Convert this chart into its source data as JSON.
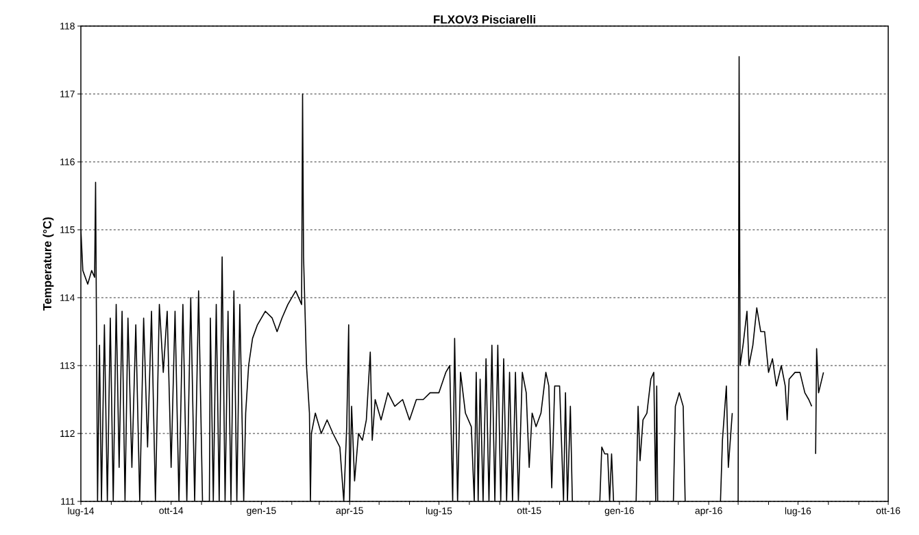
{
  "chart_data": {
    "type": "line",
    "title": "FLXOV3 Pisciarelli",
    "ylabel": "Temperature (°C)",
    "xlim": [
      "2014-07-01",
      "2016-10-01"
    ],
    "xticks": [
      {
        "value": "2014-07-01",
        "label": "lug-14"
      },
      {
        "value": "2014-08-01",
        "label": null
      },
      {
        "value": "2014-09-01",
        "label": null
      },
      {
        "value": "2014-10-01",
        "label": "ott-14"
      },
      {
        "value": "2014-11-01",
        "label": null
      },
      {
        "value": "2014-12-01",
        "label": null
      },
      {
        "value": "2015-01-01",
        "label": "gen-15"
      },
      {
        "value": "2015-02-01",
        "label": null
      },
      {
        "value": "2015-03-01",
        "label": null
      },
      {
        "value": "2015-04-01",
        "label": "apr-15"
      },
      {
        "value": "2015-05-01",
        "label": null
      },
      {
        "value": "2015-06-01",
        "label": null
      },
      {
        "value": "2015-07-01",
        "label": "lug-15"
      },
      {
        "value": "2015-08-01",
        "label": null
      },
      {
        "value": "2015-09-01",
        "label": null
      },
      {
        "value": "2015-10-01",
        "label": "ott-15"
      },
      {
        "value": "2015-11-01",
        "label": null
      },
      {
        "value": "2015-12-01",
        "label": null
      },
      {
        "value": "2016-01-01",
        "label": "gen-16"
      },
      {
        "value": "2016-02-01",
        "label": null
      },
      {
        "value": "2016-03-01",
        "label": null
      },
      {
        "value": "2016-04-01",
        "label": "apr-16"
      },
      {
        "value": "2016-05-01",
        "label": null
      },
      {
        "value": "2016-06-01",
        "label": null
      },
      {
        "value": "2016-07-01",
        "label": "lug-16"
      },
      {
        "value": "2016-08-01",
        "label": null
      },
      {
        "value": "2016-09-01",
        "label": null
      },
      {
        "value": "2016-10-01",
        "label": "ott-16"
      }
    ],
    "ylim": [
      111,
      118
    ],
    "yticks": [
      111,
      112,
      113,
      114,
      115,
      116,
      117,
      118
    ],
    "grid": "y",
    "marker": "none",
    "line_style": "solid",
    "series": [
      {
        "color": "#000000",
        "x": [
          "2014-07-01",
          "2014-07-03",
          "2014-07-08",
          "2014-07-12",
          "2014-07-15",
          "2014-07-16",
          "2014-07-18",
          "2014-07-20",
          "2014-07-22",
          "2014-07-25",
          "2014-07-28",
          "2014-07-31",
          "2014-08-03",
          "2014-08-06",
          "2014-08-09",
          "2014-08-12",
          "2014-08-15",
          "2014-08-18",
          "2014-08-22",
          "2014-08-26",
          "2014-08-30",
          "2014-09-03",
          "2014-09-07",
          "2014-09-11",
          "2014-09-15",
          "2014-09-19",
          "2014-09-23",
          "2014-09-27",
          "2014-10-01",
          "2014-10-05",
          "2014-10-09",
          "2014-10-13",
          "2014-10-17",
          "2014-10-21",
          "2014-10-25",
          "2014-10-29",
          "2014-11-02",
          "2014-11-09",
          "2014-11-10",
          "2014-11-13",
          "2014-11-16",
          "2014-11-19",
          "2014-11-22",
          "2014-11-25",
          "2014-11-28",
          "2014-12-01",
          "2014-12-04",
          "2014-12-07",
          "2014-12-10",
          "2014-12-14",
          "2014-12-16",
          "2014-12-19",
          "2014-12-23",
          "2014-12-28",
          "2015-01-05",
          "2015-01-12",
          "2015-01-17",
          "2015-01-22",
          "2015-01-28",
          "2015-02-05",
          "2015-02-11",
          "2015-02-12",
          "2015-02-13",
          "2015-02-16",
          "2015-02-19",
          "2015-02-20",
          "2015-02-21",
          "2015-02-25",
          "2015-03-03",
          "2015-03-09",
          "2015-03-15",
          "2015-03-22",
          "2015-03-26",
          "2015-03-29",
          "2015-03-31",
          "2015-04-01",
          "2015-04-03",
          "2015-04-06",
          "2015-04-10",
          "2015-04-14",
          "2015-04-18",
          "2015-04-22",
          "2015-04-24",
          "2015-04-27",
          "2015-05-03",
          "2015-05-10",
          "2015-05-17",
          "2015-05-25",
          "2015-06-01",
          "2015-06-08",
          "2015-06-15",
          "2015-06-22",
          "2015-07-01",
          "2015-07-08",
          "2015-07-12",
          "2015-07-15",
          "2015-07-17",
          "2015-07-20",
          "2015-07-23",
          "2015-07-28",
          "2015-08-03",
          "2015-08-06",
          "2015-08-08",
          "2015-08-10",
          "2015-08-12",
          "2015-08-15",
          "2015-08-18",
          "2015-08-21",
          "2015-08-24",
          "2015-08-27",
          "2015-08-30",
          "2015-09-02",
          "2015-09-05",
          "2015-09-08",
          "2015-09-11",
          "2015-09-14",
          "2015-09-17",
          "2015-09-20",
          "2015-09-24",
          "2015-09-28",
          "2015-10-01",
          "2015-10-04",
          "2015-10-08",
          "2015-10-13",
          "2015-10-18",
          "2015-10-21",
          "2015-10-24",
          "2015-10-27",
          "2015-11-01",
          "2015-11-05",
          "2015-11-07",
          "2015-11-09",
          "2015-11-12",
          "2015-11-14",
          "2015-11-20",
          "2015-12-12",
          "2015-12-14",
          "2015-12-17",
          "2015-12-20",
          "2015-12-22",
          "2015-12-24",
          "2015-12-26",
          "2015-12-30",
          "2016-01-18",
          "2016-01-20",
          "2016-01-22",
          "2016-01-25",
          "2016-01-29",
          "2016-02-02",
          "2016-02-05",
          "2016-02-07",
          "2016-02-08",
          "2016-02-09",
          "2016-02-14",
          "2016-02-25",
          "2016-02-27",
          "2016-03-02",
          "2016-03-06",
          "2016-03-08",
          "2016-03-20",
          "2016-04-13",
          "2016-04-15",
          "2016-04-19",
          "2016-04-21",
          "2016-04-25",
          "2016-04-28",
          "2016-05-01",
          "2016-05-02",
          "2016-05-03",
          "2016-05-06",
          "2016-05-10",
          "2016-05-12",
          "2016-05-16",
          "2016-05-20",
          "2016-05-24",
          "2016-05-28",
          "2016-06-01",
          "2016-06-05",
          "2016-06-09",
          "2016-06-14",
          "2016-06-18",
          "2016-06-20",
          "2016-06-22",
          "2016-06-28",
          "2016-07-03",
          "2016-07-08",
          "2016-07-12",
          "2016-07-15",
          "2016-07-18",
          "2016-07-19",
          "2016-07-20",
          "2016-07-22",
          "2016-07-27"
        ],
        "values": [
          115.0,
          114.4,
          114.2,
          114.4,
          114.3,
          115.7,
          111,
          113.3,
          111,
          113.6,
          111,
          113.7,
          111,
          113.9,
          111.5,
          113.8,
          111,
          113.7,
          111.5,
          113.6,
          111,
          113.7,
          111.8,
          113.8,
          111,
          113.9,
          112.9,
          113.8,
          111.5,
          113.8,
          111,
          113.9,
          111,
          114.0,
          111,
          114.1,
          111,
          111,
          113.7,
          111,
          113.9,
          111,
          114.6,
          111,
          113.8,
          111,
          114.1,
          111,
          113.9,
          111,
          112.3,
          113.0,
          113.4,
          113.6,
          113.8,
          113.7,
          113.5,
          113.7,
          113.9,
          114.1,
          113.9,
          117.0,
          114.6,
          113.0,
          112.3,
          111,
          112.0,
          112.3,
          112.0,
          112.2,
          112.0,
          111.8,
          111,
          112.1,
          113.6,
          111,
          112.4,
          111.3,
          112.0,
          111.9,
          112.2,
          113.2,
          111.9,
          112.5,
          112.2,
          112.6,
          112.4,
          112.5,
          112.2,
          112.5,
          112.5,
          112.6,
          112.6,
          112.9,
          113.0,
          111,
          113.4,
          111,
          112.9,
          112.3,
          112.1,
          111,
          112.9,
          111,
          112.8,
          111,
          113.1,
          111,
          113.3,
          111,
          113.3,
          111,
          113.1,
          111,
          112.9,
          111,
          112.9,
          111,
          112.9,
          112.6,
          111.5,
          112.3,
          112.1,
          112.3,
          112.9,
          112.7,
          111.2,
          112.7,
          112.7,
          111,
          112.6,
          111,
          112.4,
          111,
          null,
          111,
          111.8,
          111.7,
          111.7,
          111,
          111.7,
          111,
          null,
          111,
          112.4,
          111.6,
          112.2,
          112.3,
          112.8,
          112.9,
          111,
          112.7,
          111,
          null,
          111,
          112.4,
          112.6,
          112.4,
          111,
          null,
          111,
          111.9,
          112.7,
          111.5,
          112.3,
          null,
          111,
          117.55,
          113.0,
          113.3,
          113.8,
          113.0,
          113.3,
          113.85,
          113.5,
          113.5,
          112.9,
          113.1,
          112.7,
          113.0,
          112.7,
          112.2,
          112.8,
          112.9,
          112.9,
          112.6,
          112.5,
          112.4,
          null,
          111.7,
          113.25,
          112.6,
          112.9
        ]
      }
    ]
  }
}
